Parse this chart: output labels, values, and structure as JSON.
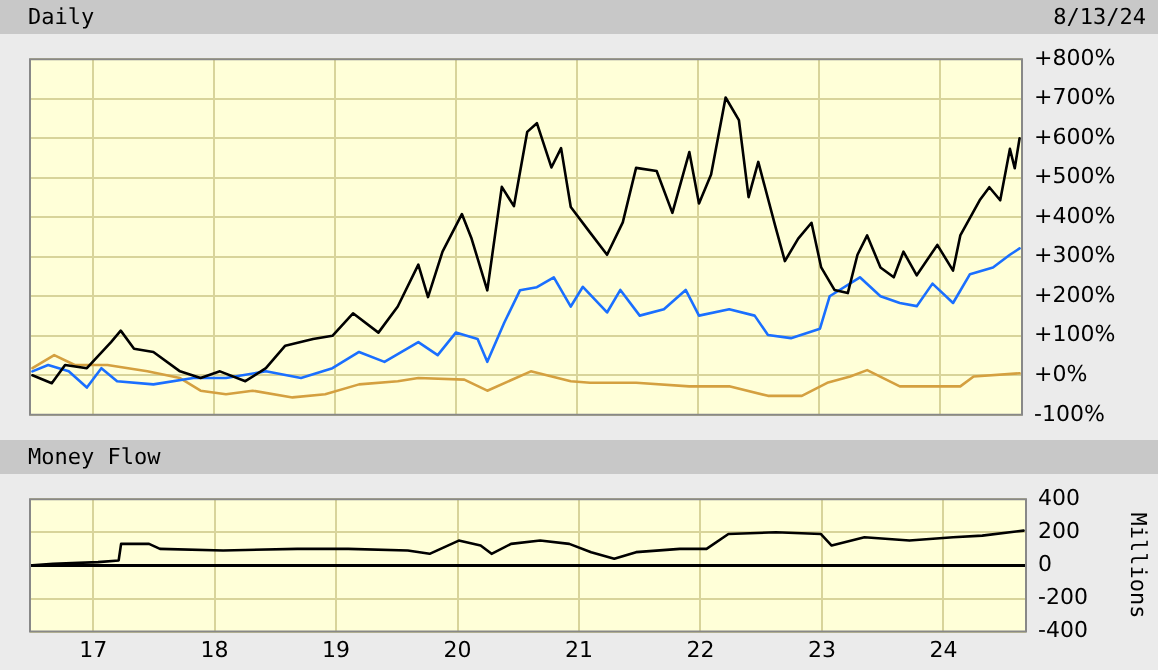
{
  "chart_data": [
    {
      "type": "line",
      "title": "Daily",
      "annotations": [
        "8/13/24"
      ],
      "xlim": [
        16.48,
        24.68
      ],
      "xticks": [
        17,
        18,
        19,
        20,
        21,
        22,
        23,
        24
      ],
      "ylim": [
        -100,
        800
      ],
      "yticks": [
        {
          "value": -100,
          "label": "-100%"
        },
        {
          "value": 0,
          "label": "+0%"
        },
        {
          "value": 100,
          "label": "+100%"
        },
        {
          "value": 200,
          "label": "+200%"
        },
        {
          "value": 300,
          "label": "+300%"
        },
        {
          "value": 400,
          "label": "+400%"
        },
        {
          "value": 500,
          "label": "+500%"
        },
        {
          "value": 600,
          "label": "+600%"
        },
        {
          "value": 700,
          "label": "+700%"
        },
        {
          "value": 800,
          "label": "+800%"
        }
      ],
      "grid": true,
      "tick_labels": "y",
      "series": [
        {
          "color": "#000000",
          "x": [
            16.5,
            16.66,
            16.77,
            16.95,
            17.15,
            17.23,
            17.34,
            17.5,
            17.72,
            17.89,
            18.05,
            18.26,
            18.43,
            18.59,
            18.82,
            18.98,
            19.15,
            19.36,
            19.52,
            19.69,
            19.77,
            19.89,
            20.05,
            20.13,
            20.26,
            20.38,
            20.48,
            20.59,
            20.67,
            20.79,
            20.87,
            20.95,
            21.11,
            21.25,
            21.38,
            21.49,
            21.66,
            21.79,
            21.93,
            22.01,
            22.11,
            22.23,
            22.34,
            22.42,
            22.5,
            22.64,
            22.72,
            22.83,
            22.94,
            23.02,
            23.13,
            23.24,
            23.32,
            23.4,
            23.51,
            23.62,
            23.7,
            23.81,
            23.98,
            24.11,
            24.17,
            24.33,
            24.41,
            24.5,
            24.58,
            24.62,
            24.66
          ],
          "values": [
            0,
            -20,
            26,
            18,
            84,
            113,
            67,
            59,
            10,
            -7,
            10,
            -15,
            18,
            75,
            92,
            100,
            157,
            108,
            174,
            280,
            198,
            313,
            408,
            346,
            215,
            477,
            428,
            616,
            638,
            526,
            575,
            426,
            361,
            305,
            387,
            525,
            517,
            411,
            565,
            435,
            508,
            703,
            646,
            451,
            540,
            378,
            289,
            346,
            386,
            273,
            216,
            208,
            305,
            354,
            273,
            248,
            313,
            253,
            330,
            265,
            354,
            443,
            476,
            443,
            573,
            524,
            600
          ]
        },
        {
          "color": "#1a6fff",
          "x": [
            16.5,
            16.63,
            16.8,
            16.95,
            17.07,
            17.2,
            17.5,
            17.83,
            18.1,
            18.43,
            18.72,
            18.98,
            19.2,
            19.41,
            19.69,
            19.85,
            20.0,
            20.18,
            20.26,
            20.4,
            20.53,
            20.67,
            20.81,
            20.95,
            21.05,
            21.25,
            21.36,
            21.52,
            21.72,
            21.9,
            22.01,
            22.26,
            22.47,
            22.58,
            22.77,
            23.01,
            23.09,
            23.34,
            23.51,
            23.67,
            23.81,
            23.94,
            24.11,
            24.25,
            24.44,
            24.58,
            24.66
          ],
          "values": [
            10,
            26,
            10,
            -31,
            18,
            -15,
            -23,
            -7,
            -7,
            10,
            -7,
            18,
            59,
            34,
            84,
            51,
            108,
            92,
            34,
            133,
            215,
            223,
            248,
            174,
            224,
            159,
            216,
            151,
            167,
            216,
            151,
            167,
            151,
            102,
            94,
            118,
            200,
            248,
            200,
            183,
            175,
            232,
            183,
            256,
            273,
            305,
            321
          ]
        },
        {
          "color": "#d4a040",
          "x": [
            16.5,
            16.68,
            16.85,
            17.12,
            17.45,
            17.72,
            17.89,
            18.1,
            18.32,
            18.65,
            18.92,
            19.2,
            19.52,
            19.69,
            20.07,
            20.26,
            20.62,
            20.95,
            21.11,
            21.49,
            21.93,
            22.26,
            22.58,
            22.86,
            23.07,
            23.26,
            23.4,
            23.67,
            23.94,
            24.17,
            24.28,
            24.66
          ],
          "values": [
            18,
            51,
            26,
            26,
            10,
            -7,
            -39,
            -48,
            -39,
            -56,
            -48,
            -23,
            -15,
            -7,
            -11,
            -39,
            10,
            -15,
            -19,
            -19,
            -28,
            -28,
            -52,
            -52,
            -19,
            -3,
            13,
            -28,
            -28,
            -28,
            -3,
            5
          ]
        }
      ]
    },
    {
      "type": "line",
      "title": "Money Flow",
      "ylabel": "Millions",
      "xlim": [
        16.48,
        24.68
      ],
      "xticks": [
        17,
        18,
        19,
        20,
        21,
        22,
        23,
        24
      ],
      "ylim": [
        -400,
        400
      ],
      "yticks": [
        -400,
        -200,
        0,
        200,
        400
      ],
      "grid": true,
      "ref_lines": [
        {
          "axis": "y",
          "value": 0,
          "color": "#000000"
        }
      ],
      "series": [
        {
          "color": "#000000",
          "x": [
            16.5,
            16.67,
            17.04,
            17.21,
            17.23,
            17.46,
            17.55,
            18.07,
            18.68,
            19.1,
            19.59,
            19.77,
            20.01,
            20.19,
            20.28,
            20.44,
            20.68,
            20.92,
            21.1,
            21.29,
            21.47,
            21.83,
            22.05,
            22.23,
            22.62,
            22.99,
            23.08,
            23.35,
            23.72,
            24.08,
            24.32,
            24.66
          ],
          "values": [
            0,
            10,
            20,
            30,
            130,
            130,
            100,
            90,
            100,
            100,
            90,
            70,
            150,
            120,
            70,
            130,
            150,
            130,
            80,
            40,
            80,
            100,
            100,
            190,
            200,
            190,
            120,
            170,
            150,
            170,
            180,
            210
          ]
        }
      ]
    }
  ]
}
